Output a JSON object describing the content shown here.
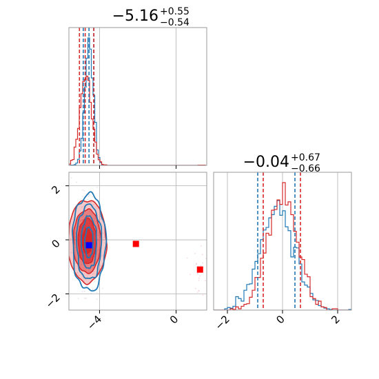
{
  "chart_data": {
    "type": "corner",
    "colors": {
      "series_a": "#1f77b4",
      "series_b": "#d62728",
      "marker_blue": "#0000ff",
      "marker_red": "#ff0000"
    },
    "grid": true,
    "parameters": [
      {
        "title_main": "−5.16",
        "title_up": "+0.55",
        "title_down": "−0.54",
        "range": [
          -5.6,
          1.6
        ]
      },
      {
        "title_main": "−0.04",
        "title_up": "+0.67",
        "title_down": "−0.66",
        "range": [
          -2.5,
          2.5
        ]
      }
    ],
    "panels": [
      {
        "kind": "histogram",
        "param": 0,
        "quantile_lines": {
          "series_a": [
            -4.85,
            -4.55,
            -4.3
          ],
          "series_b": [
            -5.05,
            -4.75,
            -4.3
          ]
        },
        "xticks": [
          -4,
          0
        ],
        "xtick_labels": [],
        "yticks": [],
        "ytick_labels": []
      },
      {
        "kind": "scatter2d",
        "x_param": 0,
        "y_param": 1,
        "xticks": [
          -4,
          0
        ],
        "xtick_labels": [
          "−4",
          "0"
        ],
        "yticks": [
          2,
          0,
          -2
        ],
        "ytick_labels": [
          "2",
          "0",
          "−2"
        ],
        "yrange": [
          -2.6,
          2.5
        ],
        "markers": [
          {
            "x": -4.55,
            "y": -0.2,
            "color": "marker_blue"
          },
          {
            "x": -2.1,
            "y": -0.15,
            "color": "marker_red"
          },
          {
            "x": 1.25,
            "y": -1.1,
            "color": "marker_red"
          }
        ]
      },
      {
        "kind": "histogram",
        "param": 1,
        "quantile_lines": {
          "series_a": [
            -0.9,
            0.45
          ],
          "series_b": [
            -0.7,
            0.65
          ]
        },
        "xticks": [
          -2,
          0,
          2
        ],
        "xtick_labels": [
          "−2",
          "0",
          "2"
        ],
        "yticks": [],
        "ytick_labels": []
      }
    ]
  }
}
